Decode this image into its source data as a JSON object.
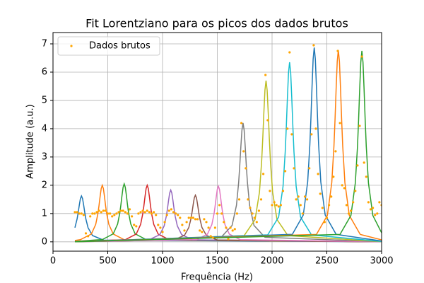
{
  "chart_data": {
    "type": "line",
    "title": "Fit Lorentziano para os picos dos dados brutos",
    "x_label": "Frequência (Hz)",
    "y_label": "Amplitude (a.u.)",
    "xlim": [
      0,
      3000
    ],
    "ylim": [
      -0.33,
      7.4
    ],
    "xticks": [
      0,
      500,
      1000,
      1500,
      2000,
      2500,
      3000
    ],
    "yticks": [
      0,
      1,
      2,
      3,
      4,
      5,
      6,
      7
    ],
    "grid": true,
    "legend": "upper left",
    "series": [
      {
        "name": "Dados brutos",
        "type": "scatter",
        "color": "#ffa500",
        "x": [
          200,
          220,
          240,
          260,
          280,
          300,
          320,
          340,
          360,
          380,
          400,
          420,
          440,
          460,
          480,
          500,
          520,
          540,
          560,
          580,
          600,
          620,
          640,
          660,
          680,
          700,
          720,
          740,
          760,
          780,
          800,
          820,
          840,
          860,
          880,
          900,
          920,
          940,
          960,
          980,
          1000,
          1020,
          1040,
          1060,
          1080,
          1100,
          1120,
          1140,
          1160,
          1180,
          1200,
          1220,
          1240,
          1260,
          1280,
          1300,
          1320,
          1340,
          1360,
          1380,
          1400,
          1420,
          1440,
          1460,
          1480,
          1500,
          1520,
          1540,
          1560,
          1580,
          1600,
          1620,
          1640,
          1660,
          1680,
          1700,
          1720,
          1740,
          1760,
          1780,
          1800,
          1820,
          1840,
          1860,
          1880,
          1900,
          1920,
          1940,
          1960,
          1980,
          2000,
          2020,
          2040,
          2060,
          2080,
          2100,
          2120,
          2140,
          2160,
          2180,
          2200,
          2220,
          2240,
          2260,
          2280,
          2300,
          2320,
          2340,
          2360,
          2380,
          2400,
          2420,
          2440,
          2460,
          2480,
          2500,
          2520,
          2540,
          2560,
          2580,
          2600,
          2620,
          2640,
          2660,
          2680,
          2700,
          2720,
          2740,
          2760,
          2780,
          2800,
          2820,
          2840,
          2860,
          2880,
          2900,
          2920,
          2940,
          2960,
          2980,
          3000
        ],
        "values": [
          1.05,
          1.05,
          1.0,
          1.0,
          0.95,
          0.3,
          0.2,
          0.9,
          1.0,
          1.0,
          1.05,
          1.1,
          1.05,
          1.1,
          1.1,
          1.0,
          1.0,
          0.9,
          0.95,
          1.0,
          1.05,
          1.1,
          1.1,
          1.05,
          1.0,
          1.15,
          0.9,
          0.6,
          0.55,
          1.0,
          1.05,
          1.1,
          1.05,
          1.1,
          1.05,
          1.0,
          1.05,
          0.95,
          0.6,
          0.5,
          0.35,
          0.7,
          0.95,
          1.1,
          1.15,
          1.05,
          1.0,
          0.95,
          0.85,
          0.6,
          0.4,
          0.7,
          0.85,
          0.85,
          0.85,
          0.8,
          0.8,
          0.4,
          0.35,
          0.8,
          0.7,
          0.5,
          0.2,
          0.15,
          0.5,
          1.0,
          1.3,
          1.0,
          0.7,
          0.5,
          0.1,
          0.5,
          0.4,
          0.45,
          1.0,
          1.5,
          4.2,
          3.2,
          2.6,
          1.5,
          1.2,
          1.0,
          0.85,
          0.7,
          1.1,
          1.5,
          2.4,
          5.9,
          4.3,
          1.8,
          1.3,
          1.4,
          1.3,
          1.25,
          1.3,
          1.8,
          2.5,
          4.0,
          6.7,
          3.8,
          2.6,
          1.5,
          1.6,
          1.3,
          1.0,
          1.6,
          1.5,
          2.6,
          3.8,
          6.95,
          4.0,
          2.4,
          1.7,
          1.2,
          0.7,
          0.85,
          1.3,
          1.6,
          2.3,
          3.2,
          6.75,
          4.2,
          2.0,
          1.9,
          1.3,
          1.0,
          1.1,
          1.4,
          1.8,
          2.7,
          4.1,
          6.55,
          2.8,
          2.3,
          1.4,
          1.15,
          1.2,
          0.95,
          1.0,
          1.4,
          1.3
        ]
      },
      {
        "color": "#1f77b4",
        "x": [
          200,
          220,
          230,
          240,
          250,
          260,
          270,
          280,
          290,
          300,
          320,
          360,
          460,
          3000
        ],
        "values": [
          0.499,
          0.81,
          1.037,
          1.296,
          1.524,
          1.62,
          1.524,
          1.296,
          1.037,
          0.81,
          0.499,
          0.224,
          0.062,
          0
        ]
      },
      {
        "color": "#ff7f0e",
        "x": [
          200,
          250,
          350,
          390,
          410,
          420,
          430,
          440,
          450,
          460,
          470,
          480,
          490,
          510,
          550,
          650,
          3000
        ],
        "values": [
          0.05,
          0.077,
          0.276,
          0.616,
          1,
          1.28,
          1.6,
          1.882,
          2,
          1.882,
          1.6,
          1.28,
          1,
          0.616,
          0.276,
          0.077,
          0
        ]
      },
      {
        "color": "#2ca02c",
        "x": [
          200,
          450,
          550,
          590,
          610,
          620,
          630,
          640,
          650,
          660,
          670,
          680,
          690,
          710,
          750,
          850,
          3000
        ],
        "values": [
          0.016,
          0.079,
          0.283,
          0.631,
          1.025,
          1.312,
          1.64,
          1.929,
          2.05,
          1.929,
          1.64,
          1.312,
          1.025,
          0.631,
          0.283,
          0.079,
          0
        ]
      },
      {
        "color": "#d62728",
        "x": [
          200,
          660,
          760,
          800,
          820,
          830,
          840,
          850,
          860,
          870,
          880,
          890,
          900,
          920,
          960,
          1060,
          3000
        ],
        "values": [
          0.007,
          0.077,
          0.276,
          0.616,
          1,
          1.28,
          1.6,
          1.882,
          2,
          1.882,
          1.6,
          1.28,
          1,
          0.616,
          0.276,
          0.077,
          0.001
        ]
      },
      {
        "color": "#9467bd",
        "x": [
          200,
          875,
          975,
          1015,
          1035,
          1045,
          1055,
          1065,
          1075,
          1085,
          1095,
          1105,
          1115,
          1135,
          1175,
          1275,
          3000
        ],
        "values": [
          0.004,
          0.07,
          0.253,
          0.564,
          0.915,
          1.171,
          1.464,
          1.722,
          1.83,
          1.722,
          1.464,
          1.171,
          0.915,
          0.564,
          0.253,
          0.07,
          0.001
        ]
      },
      {
        "color": "#8c564b",
        "x": [
          200,
          1100,
          1200,
          1240,
          1260,
          1270,
          1280,
          1290,
          1300,
          1310,
          1320,
          1330,
          1340,
          1360,
          1400,
          1500,
          3000
        ],
        "values": [
          0.002,
          0.064,
          0.228,
          0.508,
          0.825,
          1.056,
          1.32,
          1.553,
          1.65,
          1.553,
          1.32,
          1.056,
          0.825,
          0.508,
          0.228,
          0.064,
          0.001
        ]
      },
      {
        "color": "#e377c2",
        "x": [
          200,
          1310,
          1410,
          1450,
          1470,
          1480,
          1490,
          1500,
          1510,
          1520,
          1530,
          1540,
          1550,
          1570,
          1610,
          1710,
          3000
        ],
        "values": [
          0.002,
          0.076,
          0.272,
          0.607,
          0.985,
          1.261,
          1.576,
          1.854,
          1.97,
          1.854,
          1.576,
          1.261,
          0.985,
          0.607,
          0.272,
          0.076,
          0.001
        ]
      },
      {
        "color": "#7f7f7f",
        "x": [
          200,
          1535,
          1635,
          1675,
          1695,
          1705,
          1715,
          1725,
          1735,
          1745,
          1755,
          1765,
          1775,
          1795,
          1835,
          1935,
          3000
        ],
        "values": [
          0.003,
          0.162,
          0.58,
          1.294,
          2.1,
          2.688,
          3.36,
          3.952,
          4.2,
          3.952,
          3.36,
          2.688,
          2.1,
          1.294,
          0.58,
          0.162,
          0.004
        ]
      },
      {
        "color": "#bcbd22",
        "x": [
          200,
          1745,
          1845,
          1885,
          1905,
          1915,
          1925,
          1935,
          1945,
          1955,
          1965,
          1975,
          1985,
          2005,
          2045,
          2145,
          3000
        ],
        "values": [
          0.003,
          0.219,
          0.787,
          1.756,
          2.85,
          3.648,
          4.56,
          5.364,
          5.7,
          5.364,
          4.56,
          3.648,
          2.85,
          1.756,
          0.787,
          0.219,
          0.008
        ]
      },
      {
        "color": "#17becf",
        "x": [
          200,
          1960,
          2060,
          2100,
          2120,
          2130,
          2140,
          2150,
          2160,
          2170,
          2180,
          2190,
          2200,
          2220,
          2260,
          2360,
          3000
        ],
        "values": [
          0.003,
          0.244,
          0.876,
          1.956,
          3.175,
          4.064,
          5.08,
          5.975,
          6.35,
          5.975,
          5.08,
          4.064,
          3.175,
          1.956,
          0.876,
          0.244,
          0.014
        ]
      },
      {
        "color": "#1f77b4",
        "x": [
          200,
          2185,
          2285,
          2325,
          2345,
          2355,
          2365,
          2375,
          2385,
          2395,
          2405,
          2415,
          2425,
          2445,
          2485,
          2585,
          3000
        ],
        "values": [
          0.003,
          0.264,
          0.948,
          2.116,
          3.435,
          4.397,
          5.496,
          6.465,
          6.87,
          6.465,
          5.496,
          4.397,
          3.435,
          2.116,
          0.948,
          0.264,
          0.029
        ]
      },
      {
        "color": "#ff7f0e",
        "x": [
          200,
          2405,
          2505,
          2545,
          2565,
          2575,
          2585,
          2595,
          2605,
          2615,
          2625,
          2635,
          2645,
          2665,
          2705,
          2805,
          3000
        ],
        "values": [
          0.002,
          0.261,
          0.936,
          2.088,
          3.39,
          4.339,
          5.424,
          6.38,
          6.78,
          6.38,
          5.424,
          4.339,
          3.39,
          2.088,
          0.936,
          0.261,
          0.069
        ]
      },
      {
        "color": "#2ca02c",
        "x": [
          200,
          2620,
          2720,
          2760,
          2780,
          2790,
          2800,
          2810,
          2820,
          2830,
          2840,
          2850,
          2860,
          2880,
          2920,
          3000
        ],
        "values": [
          0.002,
          0.26,
          0.932,
          2.079,
          3.375,
          4.32,
          5.4,
          6.352,
          6.75,
          6.352,
          5.4,
          4.32,
          3.375,
          2.079,
          0.932,
          0.318
        ]
      }
    ]
  }
}
